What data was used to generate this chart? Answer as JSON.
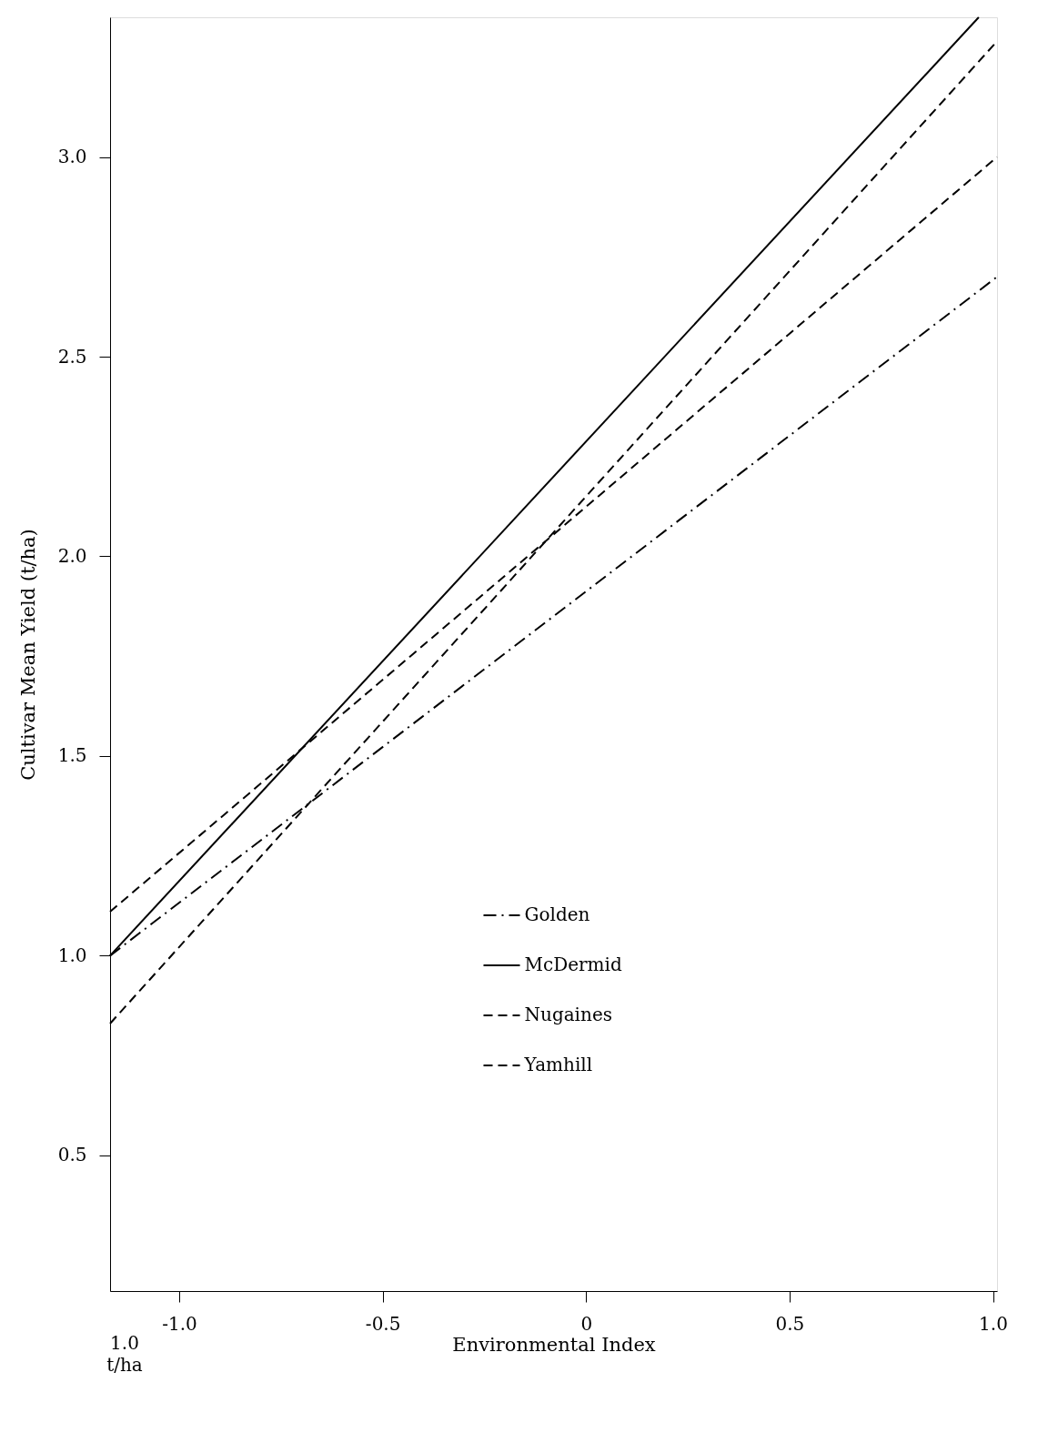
{
  "chart_data": {
    "type": "line",
    "xlabel": "Environmental Index",
    "ylabel": "Cultivar Mean Yield (t/ha)",
    "xlim": [
      -1.17,
      1.01
    ],
    "ylim": [
      0.16,
      3.35
    ],
    "xticks": [
      {
        "value": -1.0,
        "label": "-1.0"
      },
      {
        "value": -0.5,
        "label": "-0.5"
      },
      0,
      {
        "value": 0.5,
        "label": "0.5"
      },
      {
        "value": 1.0,
        "label": "1.0"
      }
    ],
    "yticks": [
      {
        "value": 0.5,
        "label": "0.5"
      },
      {
        "value": 1.0,
        "label": "1.0"
      },
      {
        "value": 1.5,
        "label": "1.5"
      },
      {
        "value": 2.0,
        "label": "2.0"
      },
      {
        "value": 2.5,
        "label": "2.5"
      },
      {
        "value": 3.0,
        "label": "3.0"
      }
    ],
    "grid": false,
    "legend": "bottom right",
    "annotations": [
      "1.0 t/ha"
    ],
    "series": [
      {
        "name": "Golden",
        "color": "#000000",
        "line_style": "dashdot",
        "x": [
          -1.17,
          1.01
        ],
        "values": [
          1.0,
          2.7
        ]
      },
      {
        "name": "McDermid",
        "color": "#000000",
        "line_style": "solid",
        "x": [
          -1.17,
          0.965
        ],
        "values": [
          1.0,
          3.35
        ]
      },
      {
        "name": "Nugaines",
        "color": "#000000",
        "line_style": "dashed",
        "x": [
          -1.17,
          1.01
        ],
        "values": [
          1.11,
          3.0
        ]
      },
      {
        "name": "Yamhill",
        "color": "#000000",
        "line_style": "dashed",
        "x": [
          -1.17,
          1.01
        ],
        "values": [
          0.83,
          3.29
        ]
      }
    ]
  }
}
